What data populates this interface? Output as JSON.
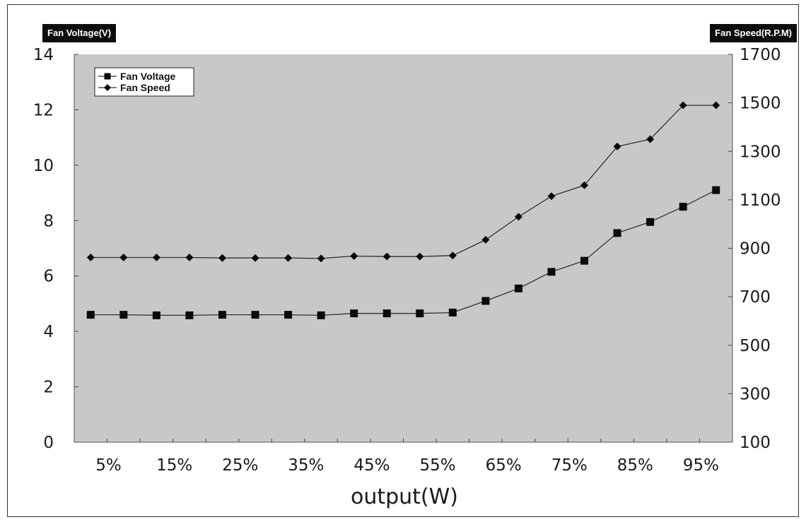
{
  "chart_data": {
    "type": "line",
    "x": [
      "3%",
      "8%",
      "13%",
      "18%",
      "23%",
      "28%",
      "33%",
      "38%",
      "43%",
      "48%",
      "53%",
      "58%",
      "63%",
      "68%",
      "73%",
      "78%",
      "83%",
      "88%",
      "93%",
      "98%"
    ],
    "x_tick_labels": [
      "5%",
      "15%",
      "25%",
      "35%",
      "45%",
      "55%",
      "65%",
      "75%",
      "85%",
      "95%"
    ],
    "xlabel": "output(W)",
    "left_axis": {
      "label": "Fan Voltage(V)",
      "range": [
        0,
        14
      ],
      "ticks": [
        0,
        2,
        4,
        6,
        8,
        10,
        12,
        14
      ]
    },
    "right_axis": {
      "label": "Fan Speed(R.P.M)",
      "range": [
        100,
        1700
      ],
      "ticks": [
        100,
        300,
        500,
        700,
        900,
        1100,
        1300,
        1500,
        1700
      ]
    },
    "series": [
      {
        "name": "Fan Voltage",
        "axis": "left",
        "marker": "square",
        "values": [
          4.6,
          4.6,
          4.58,
          4.58,
          4.6,
          4.6,
          4.6,
          4.58,
          4.65,
          4.65,
          4.65,
          4.68,
          5.1,
          5.55,
          6.15,
          6.55,
          7.55,
          7.95,
          8.5,
          9.1
        ]
      },
      {
        "name": "Fan Speed",
        "axis": "right",
        "marker": "diamond",
        "values": [
          862,
          862,
          862,
          862,
          860,
          860,
          860,
          858,
          868,
          866,
          866,
          870,
          935,
          1030,
          1115,
          1160,
          1320,
          1350,
          1490,
          1490
        ]
      }
    ],
    "legend_position": "top-left",
    "grid": false,
    "colors": {
      "plot_background": "#c8c8c8",
      "line": "#303030",
      "marker": "#0a0a0a"
    }
  }
}
